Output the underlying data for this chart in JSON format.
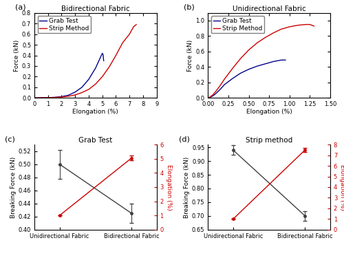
{
  "panel_a": {
    "title": "Bidirectional Fabric",
    "xlabel": "Elongation (%)",
    "ylabel": "Force (kN)",
    "xlim": [
      0,
      9
    ],
    "ylim": [
      0.0,
      0.8
    ],
    "xticks": [
      0,
      1,
      2,
      3,
      4,
      5,
      6,
      7,
      8,
      9
    ],
    "yticks": [
      0.0,
      0.1,
      0.2,
      0.3,
      0.4,
      0.5,
      0.6,
      0.7,
      0.8
    ],
    "grab_x": [
      0.0,
      0.3,
      0.6,
      1.0,
      1.5,
      2.0,
      2.5,
      3.0,
      3.5,
      4.0,
      4.5,
      5.0,
      5.05,
      5.1
    ],
    "grab_y": [
      0.0,
      0.001,
      0.002,
      0.003,
      0.006,
      0.012,
      0.025,
      0.055,
      0.1,
      0.175,
      0.28,
      0.42,
      0.41,
      0.35
    ],
    "strip_x": [
      0.0,
      0.5,
      1.0,
      1.5,
      2.0,
      2.5,
      3.0,
      3.5,
      4.0,
      4.5,
      5.0,
      5.5,
      6.0,
      6.5,
      7.0,
      7.3,
      7.5
    ],
    "strip_y": [
      0.0,
      0.001,
      0.002,
      0.004,
      0.008,
      0.015,
      0.028,
      0.05,
      0.08,
      0.13,
      0.2,
      0.29,
      0.4,
      0.52,
      0.6,
      0.67,
      0.69
    ]
  },
  "panel_b": {
    "title": "Unidirectional Fabric",
    "xlabel": "Elongation (%)",
    "ylabel": "Force (kN)",
    "xlim": [
      0.0,
      1.5
    ],
    "ylim": [
      0.0,
      1.1
    ],
    "xticks": [
      0.0,
      0.25,
      0.5,
      0.75,
      1.0,
      1.25,
      1.5
    ],
    "yticks": [
      0.0,
      0.2,
      0.4,
      0.6,
      0.8,
      1.0
    ],
    "grab_x": [
      0.0,
      0.03,
      0.06,
      0.1,
      0.15,
      0.2,
      0.3,
      0.4,
      0.5,
      0.6,
      0.7,
      0.8,
      0.9,
      0.95
    ],
    "grab_y": [
      0.0,
      0.01,
      0.025,
      0.06,
      0.11,
      0.17,
      0.25,
      0.32,
      0.37,
      0.41,
      0.44,
      0.47,
      0.49,
      0.49
    ],
    "strip_x": [
      0.0,
      0.03,
      0.06,
      0.1,
      0.15,
      0.2,
      0.3,
      0.4,
      0.5,
      0.6,
      0.7,
      0.8,
      0.9,
      1.0,
      1.1,
      1.2,
      1.25,
      1.3
    ],
    "strip_y": [
      0.0,
      0.015,
      0.04,
      0.09,
      0.16,
      0.24,
      0.38,
      0.51,
      0.62,
      0.71,
      0.78,
      0.84,
      0.89,
      0.92,
      0.94,
      0.95,
      0.95,
      0.93
    ]
  },
  "panel_c": {
    "title": "Grab Test",
    "x_labels": [
      "Unidirectional Fabric",
      "Bidirectional Fabric"
    ],
    "force_values": [
      0.5,
      0.425
    ],
    "force_errors": [
      0.022,
      0.015
    ],
    "elong_values": [
      1.0,
      5.05
    ],
    "elong_errors": [
      0.0,
      0.18
    ],
    "ylabel_left": "Breaking Force (kN)",
    "ylabel_right": "Elongation (%)",
    "ylim_left": [
      0.4,
      0.53
    ],
    "ylim_right": [
      0,
      6
    ],
    "yticks_left": [
      0.4,
      0.42,
      0.44,
      0.46,
      0.48,
      0.5,
      0.52
    ],
    "yticks_right": [
      0,
      1,
      2,
      3,
      4,
      5,
      6
    ]
  },
  "panel_d": {
    "title": "Strip method",
    "x_labels": [
      "Unidirectional Fabric",
      "Bidirectional Fabric"
    ],
    "force_values": [
      0.94,
      0.7
    ],
    "force_errors": [
      0.018,
      0.018
    ],
    "elong_values": [
      1.0,
      7.5
    ],
    "elong_errors": [
      0.0,
      0.22
    ],
    "ylabel_left": "Breaking Force (kN)",
    "ylabel_right": "Elongation (%)",
    "ylim_left": [
      0.65,
      0.96
    ],
    "ylim_right": [
      0,
      8
    ],
    "yticks_left": [
      0.65,
      0.7,
      0.75,
      0.8,
      0.85,
      0.9,
      0.95
    ],
    "yticks_right": [
      0,
      1,
      2,
      3,
      4,
      5,
      6,
      7,
      8
    ]
  },
  "grab_color": "#00008B",
  "strip_color": "#CC0000",
  "force_color": "#404040",
  "elong_color": "#CC0000",
  "label_fontsize": 6.5,
  "title_fontsize": 7.5,
  "tick_fontsize": 6,
  "legend_fontsize": 6.5
}
